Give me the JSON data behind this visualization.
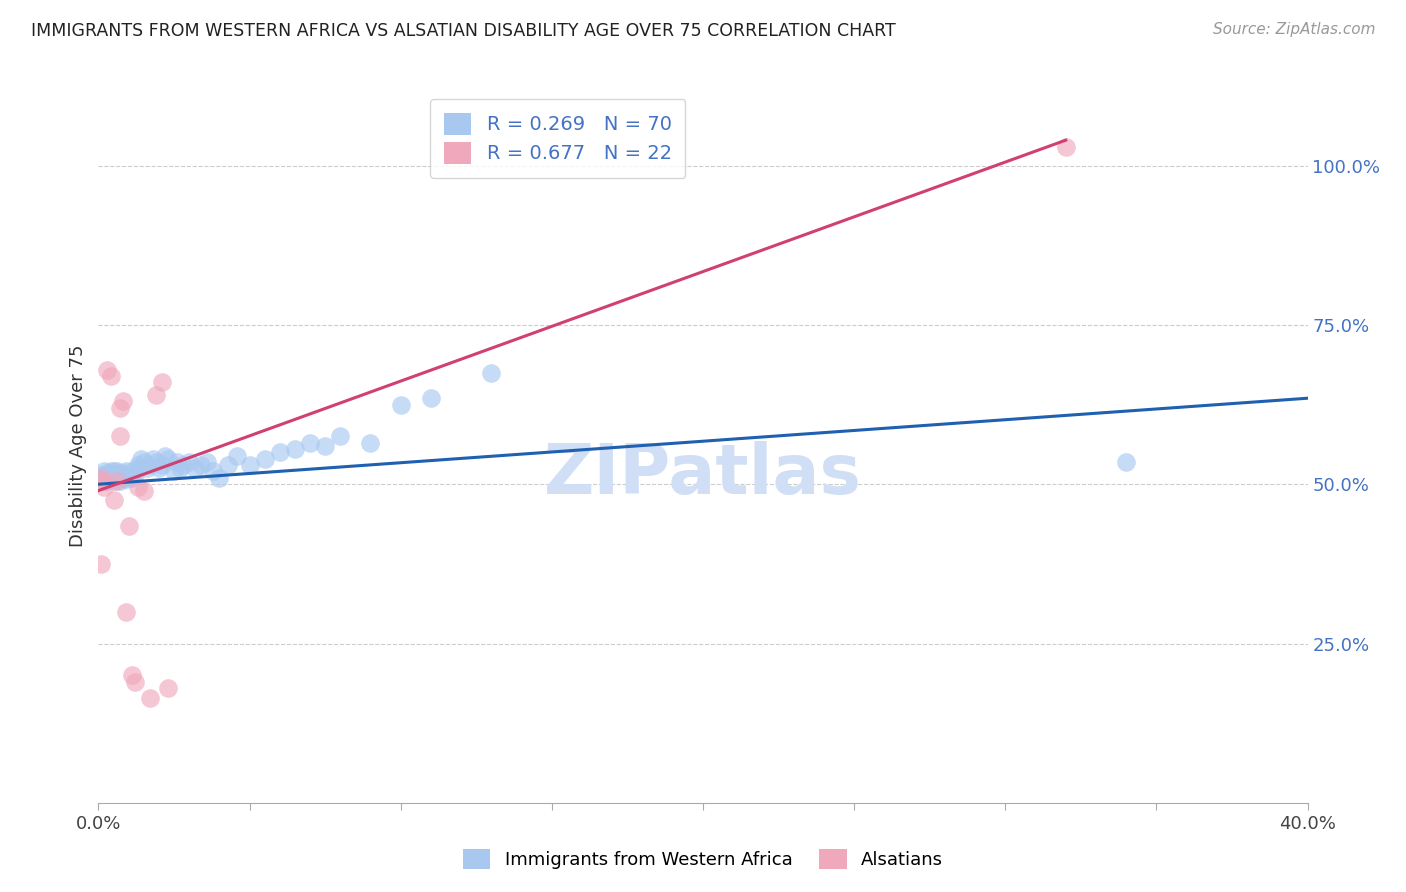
{
  "title": "IMMIGRANTS FROM WESTERN AFRICA VS ALSATIAN DISABILITY AGE OVER 75 CORRELATION CHART",
  "source": "Source: ZipAtlas.com",
  "ylabel": "Disability Age Over 75",
  "xlim": [
    0.0,
    0.4
  ],
  "ylim": [
    0.0,
    1.12
  ],
  "ytick_right": [
    0.25,
    0.5,
    0.75,
    1.0
  ],
  "ytick_right_labels": [
    "25.0%",
    "50.0%",
    "75.0%",
    "100.0%"
  ],
  "blue_R": 0.269,
  "blue_N": 70,
  "pink_R": 0.677,
  "pink_N": 22,
  "blue_color": "#A8C8F0",
  "pink_color": "#F0A8BC",
  "blue_line_color": "#2060B0",
  "pink_line_color": "#D04070",
  "watermark": "ZIPatlas",
  "watermark_color": "#D0DFF5",
  "legend_label_blue": "Immigrants from Western Africa",
  "legend_label_pink": "Alsatians",
  "blue_scatter_x": [
    0.001,
    0.001,
    0.002,
    0.002,
    0.002,
    0.003,
    0.003,
    0.003,
    0.003,
    0.004,
    0.004,
    0.004,
    0.004,
    0.005,
    0.005,
    0.005,
    0.005,
    0.006,
    0.006,
    0.006,
    0.006,
    0.007,
    0.007,
    0.007,
    0.008,
    0.008,
    0.008,
    0.009,
    0.009,
    0.01,
    0.01,
    0.011,
    0.011,
    0.012,
    0.013,
    0.013,
    0.014,
    0.015,
    0.016,
    0.017,
    0.018,
    0.019,
    0.02,
    0.021,
    0.022,
    0.023,
    0.025,
    0.026,
    0.027,
    0.028,
    0.03,
    0.032,
    0.034,
    0.036,
    0.038,
    0.04,
    0.043,
    0.046,
    0.05,
    0.055,
    0.06,
    0.065,
    0.07,
    0.075,
    0.08,
    0.09,
    0.1,
    0.11,
    0.13,
    0.34
  ],
  "blue_scatter_y": [
    0.51,
    0.515,
    0.505,
    0.51,
    0.52,
    0.508,
    0.512,
    0.518,
    0.505,
    0.51,
    0.515,
    0.508,
    0.52,
    0.51,
    0.505,
    0.515,
    0.52,
    0.508,
    0.512,
    0.515,
    0.52,
    0.51,
    0.515,
    0.505,
    0.515,
    0.51,
    0.518,
    0.508,
    0.52,
    0.512,
    0.515,
    0.52,
    0.51,
    0.515,
    0.53,
    0.525,
    0.54,
    0.535,
    0.525,
    0.53,
    0.54,
    0.535,
    0.525,
    0.53,
    0.545,
    0.54,
    0.52,
    0.535,
    0.525,
    0.53,
    0.535,
    0.525,
    0.53,
    0.535,
    0.52,
    0.51,
    0.53,
    0.545,
    0.53,
    0.54,
    0.55,
    0.555,
    0.565,
    0.56,
    0.575,
    0.565,
    0.625,
    0.635,
    0.675,
    0.535
  ],
  "pink_scatter_x": [
    0.001,
    0.002,
    0.002,
    0.003,
    0.004,
    0.005,
    0.006,
    0.007,
    0.007,
    0.008,
    0.009,
    0.01,
    0.011,
    0.012,
    0.013,
    0.015,
    0.017,
    0.019,
    0.021,
    0.023,
    0.32,
    0.001
  ],
  "pink_scatter_y": [
    0.51,
    0.505,
    0.495,
    0.68,
    0.67,
    0.475,
    0.505,
    0.575,
    0.62,
    0.63,
    0.3,
    0.435,
    0.2,
    0.19,
    0.495,
    0.49,
    0.165,
    0.64,
    0.66,
    0.18,
    1.03,
    0.375
  ],
  "blue_trend_x": [
    0.0,
    0.4
  ],
  "blue_trend_y": [
    0.5,
    0.635
  ],
  "pink_trend_x": [
    0.0,
    0.32
  ],
  "pink_trend_y": [
    0.49,
    1.04
  ]
}
